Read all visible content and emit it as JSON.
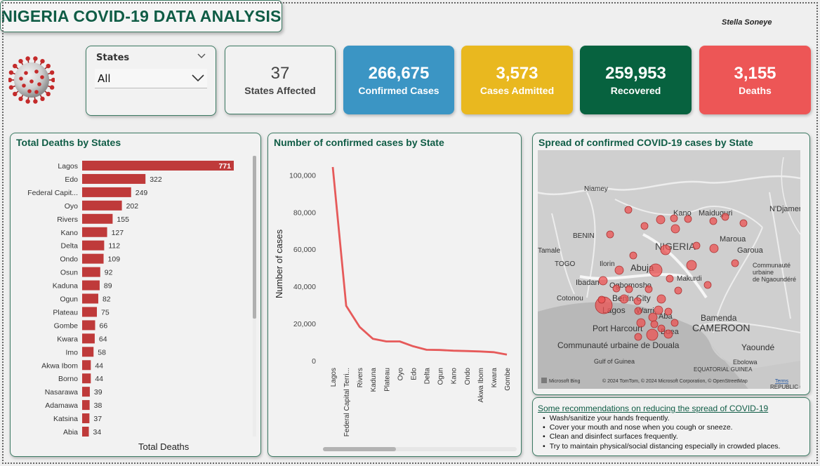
{
  "header": {
    "title": "NIGERIA COVID-19 DATA ANALYSIS",
    "author": "Stella Soneye"
  },
  "slicer": {
    "label": "States",
    "selected": "All"
  },
  "kpis": [
    {
      "value": "37",
      "caption": "States Affected",
      "color": "#f2f2f2"
    },
    {
      "value": "266,675",
      "caption": "Confirmed Cases",
      "color": "#3b95c4"
    },
    {
      "value": "3,573",
      "caption": "Cases Admitted",
      "color": "#e9b81f"
    },
    {
      "value": "259,953",
      "caption": "Recovered",
      "color": "#07623f"
    },
    {
      "value": "3,155",
      "caption": "Deaths",
      "color": "#ed5656"
    }
  ],
  "map": {
    "title": "Spread of confirmed COVID-19 cases by State",
    "labels": [
      "Niamey",
      "N'Djamena",
      "Kano",
      "Maiduguri",
      "BENIN",
      "NIGERIA",
      "Maroua",
      "Tamale",
      "TOGO",
      "Ilorin",
      "Abuja",
      "Garoua",
      "Communauté urbaine de Ngaoundéré",
      "Ibadan",
      "Ogbomosho",
      "Makurdi",
      "Cotonou",
      "Benin City",
      "Lagos",
      "Warri",
      "Aba",
      "Bamenda",
      "Port Harcourt",
      "Buea",
      "CAMEROON",
      "Communauté urbaine de Douala",
      "Yaoundé",
      "Gulf of Guinea",
      "Ebolowa",
      "EQUATORIAL GUINEA",
      "REPUBLIC OF"
    ],
    "attribution": "© 2024 TomTom, © 2024 Microsoft Corporation, © OpenStreetMap",
    "terms": "Terms",
    "logo": "Microsoft Bing"
  },
  "recommendations": {
    "title": "Some recommendations on reducing the spread of COVID-19",
    "items": [
      "Wash/sanitize your hands frequently.",
      "Cover your mouth and nose when you cough or sneeze.",
      "Clean and disinfect surfaces frequently.",
      "Try to maintain physical/social distancing especially in crowded places."
    ]
  },
  "chart_data": [
    {
      "type": "bar",
      "orientation": "horizontal",
      "title": "Total Deaths by States",
      "xlabel": "Total Deaths",
      "color": "#bf3a3a",
      "categories": [
        "Lagos",
        "Edo",
        "Federal Capit...",
        "Oyo",
        "Rivers",
        "Kano",
        "Delta",
        "Ondo",
        "Osun",
        "Kaduna",
        "Ogun",
        "Plateau",
        "Gombe",
        "Kwara",
        "Imo",
        "Akwa Ibom",
        "Borno",
        "Nasarawa",
        "Adamawa",
        "Katsina",
        "Abia"
      ],
      "values": [
        771,
        322,
        249,
        202,
        155,
        127,
        112,
        109,
        92,
        89,
        82,
        75,
        66,
        64,
        58,
        44,
        44,
        39,
        38,
        37,
        34
      ],
      "xlim": [
        0,
        800
      ]
    },
    {
      "type": "line",
      "title": "Number of confirmed cases by State",
      "ylabel": "Number of cases",
      "color": "#e65a5a",
      "categories": [
        "Lagos",
        "Federal Capital Terri...",
        "Rivers",
        "Kaduna",
        "Plateau",
        "Oyo",
        "Edo",
        "Delta",
        "Ogun",
        "Kano",
        "Ondo",
        "Akwa Ibom",
        "Kwara",
        "Gombe"
      ],
      "values": [
        104300,
        29600,
        18200,
        11800,
        10400,
        10400,
        7800,
        5900,
        5800,
        5400,
        5200,
        5000,
        4600,
        3300
      ],
      "yticks": [
        "0",
        "20,000",
        "40,000",
        "60,000",
        "80,000",
        "100,000"
      ],
      "ylim": [
        0,
        110000
      ]
    }
  ]
}
